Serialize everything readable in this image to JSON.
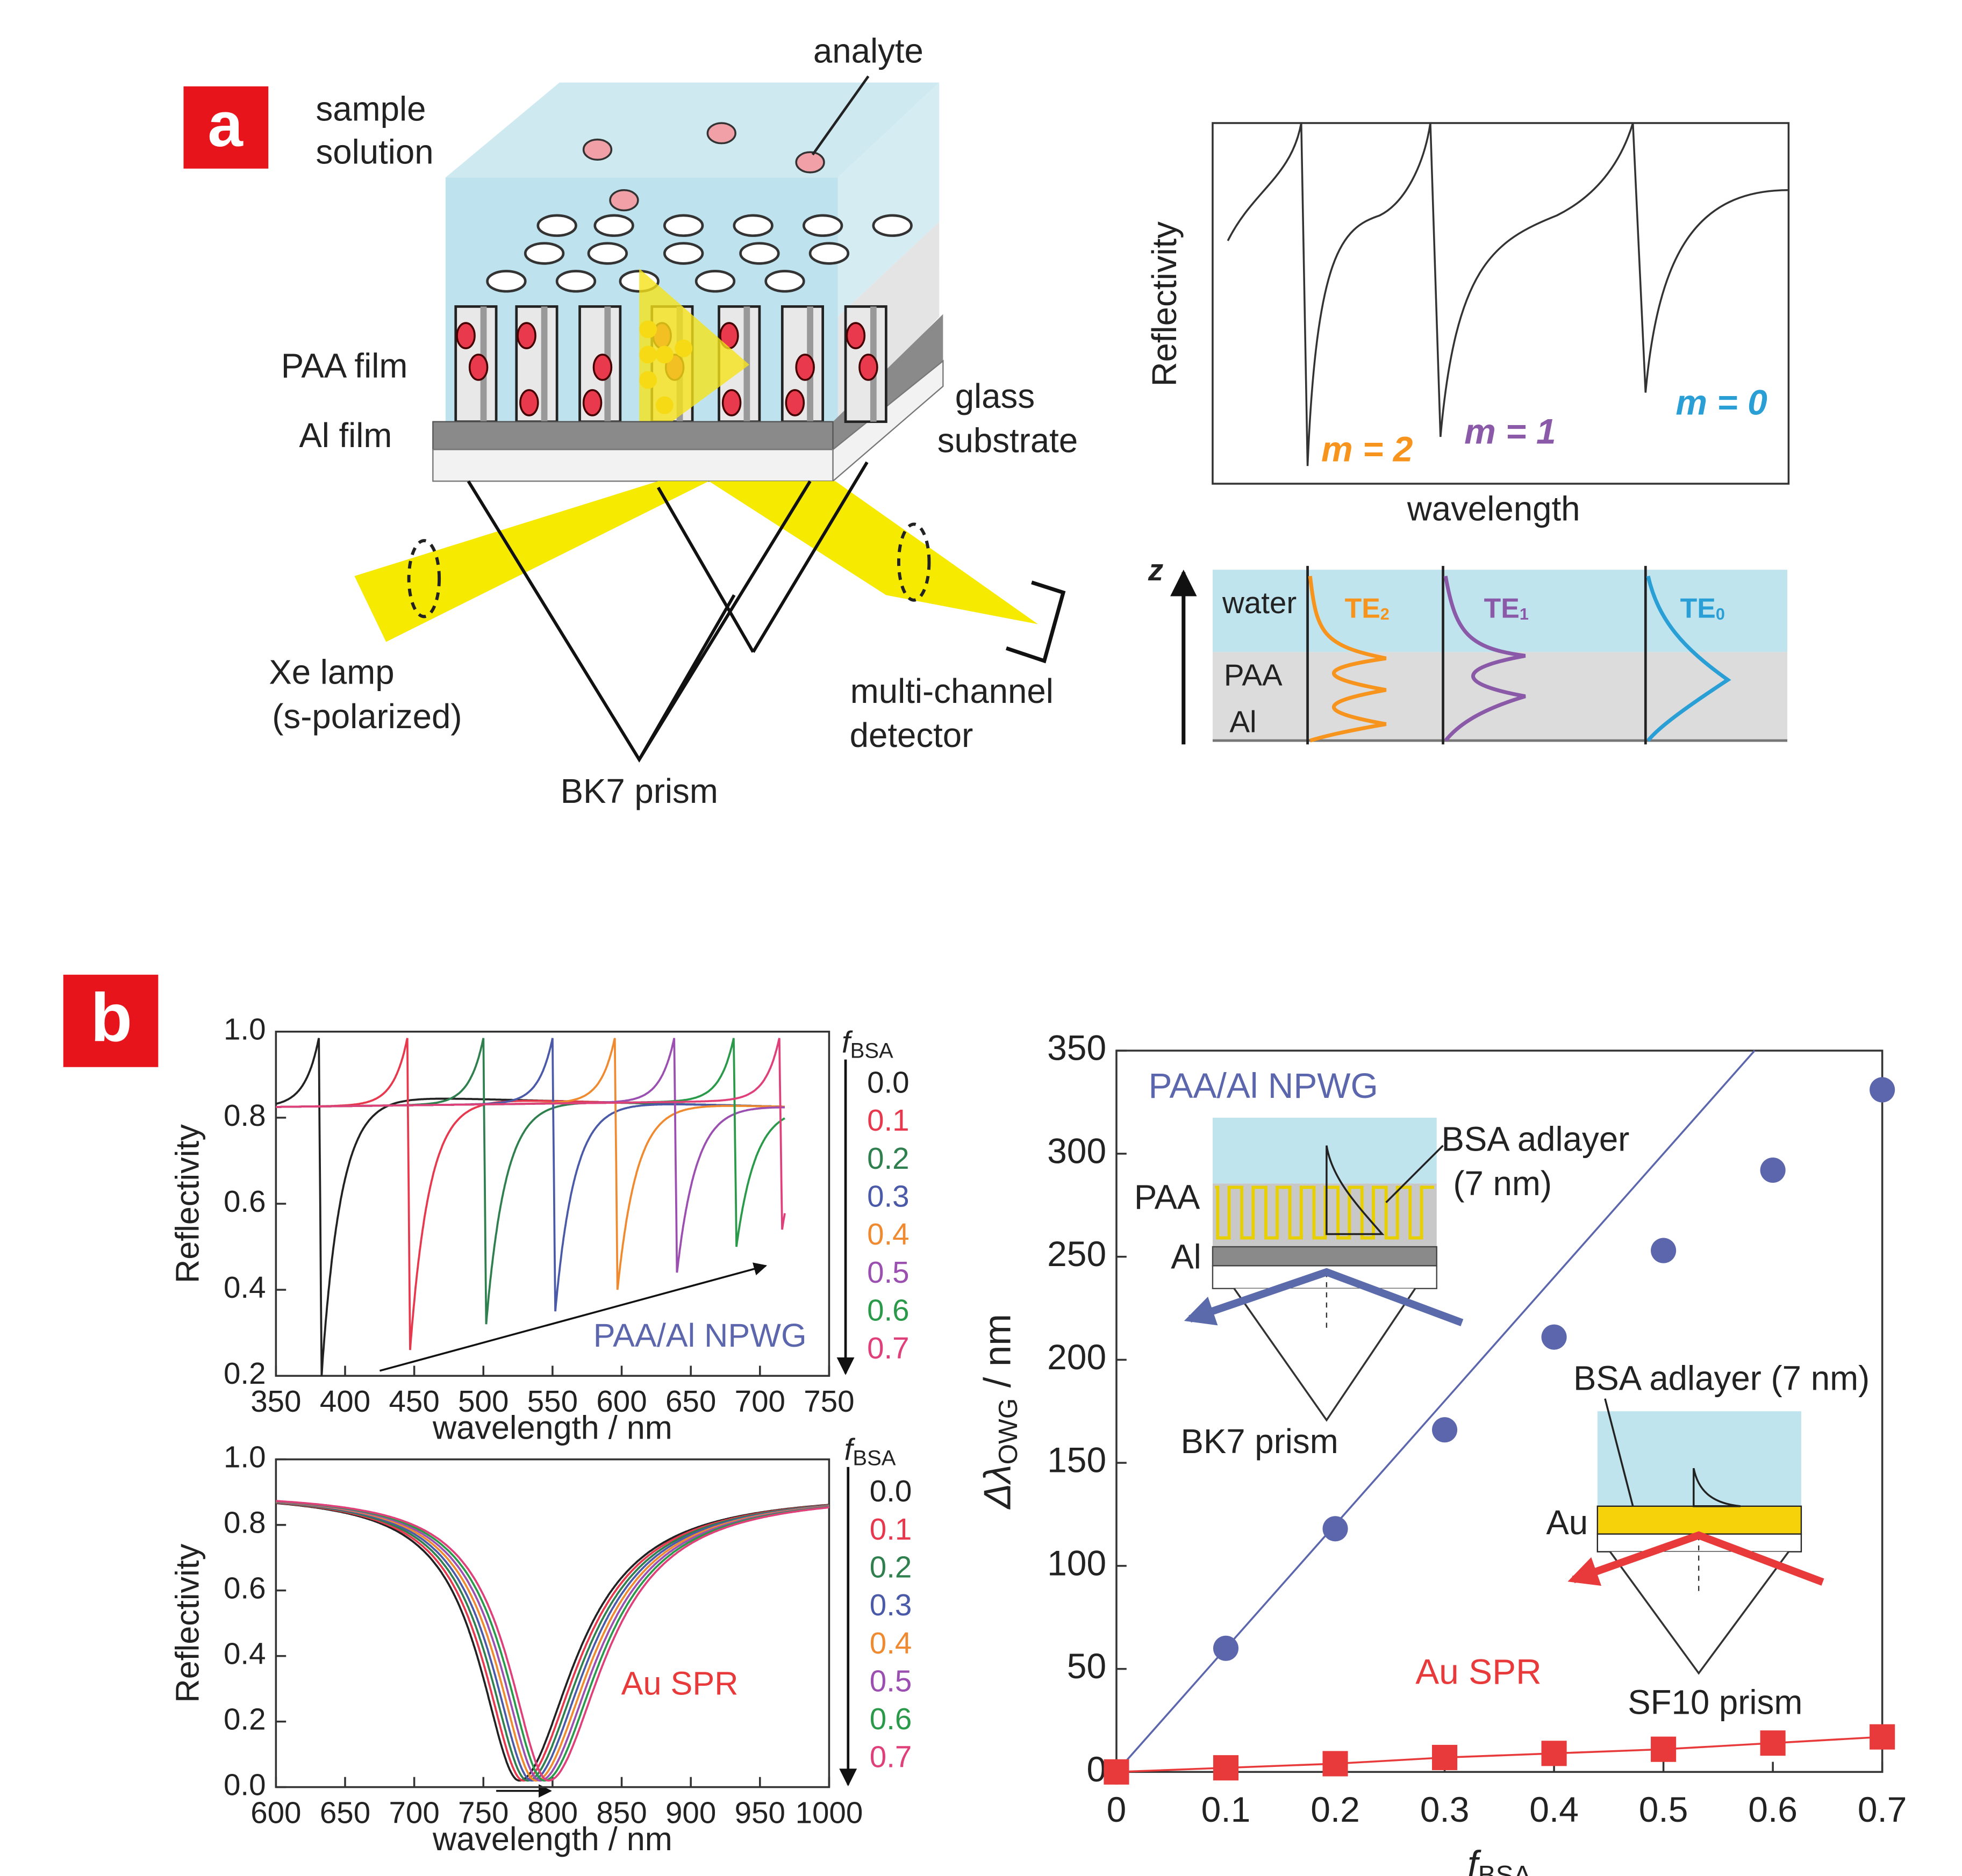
{
  "panel_a": {
    "label": "a",
    "analyte": "analyte",
    "sample_solution": [
      "sample",
      "solution"
    ],
    "paa_film": "PAA film",
    "al_film": "Al film",
    "glass_substrate": [
      "glass",
      "substrate"
    ],
    "lamp": [
      "Xe lamp",
      "(s-polarized)"
    ],
    "detector": [
      "multi-channel",
      "detector"
    ],
    "prism": "BK7 prism",
    "reflectivity_label": "Reflectivity",
    "wavelength_label": "wavelength",
    "modes": [
      {
        "label": "m = 2",
        "color": "#f7941d",
        "te": "TE",
        "sub": "2"
      },
      {
        "label": "m = 1",
        "color": "#8a5aa8",
        "te": "TE",
        "sub": "1"
      },
      {
        "label": "m = 0",
        "color": "#2a9fd6",
        "te": "TE",
        "sub": "0"
      }
    ],
    "z": "z",
    "water": "water",
    "paa": "PAA",
    "al": "Al"
  },
  "panel_b": {
    "label": "b",
    "inset_bsa": "BSA adlayer",
    "inset_bsa_thickness": "(7 nm)",
    "inset_paa": "PAA",
    "inset_al": "Al",
    "inset_bk7": "BK7 prism",
    "inset_bsa_au": "BSA adlayer (7 nm)",
    "inset_au": "Au",
    "inset_sf10": "SF10 prism"
  },
  "chart_data": [
    {
      "type": "spectra",
      "xlabel": "wavelength / nm",
      "ylabel": "Reflectivity",
      "xlim": [
        350,
        750
      ],
      "xticks": [
        350,
        400,
        450,
        500,
        550,
        600,
        650,
        700,
        750
      ],
      "ylim": [
        0.2,
        1
      ],
      "yticks": [
        0.2,
        0.4,
        0.6,
        0.8,
        {
          "value": 1,
          "label": "1.0"
        }
      ],
      "xrange": [
        350,
        718
      ],
      "legend_title": "f",
      "legend_title_sub": "BSA",
      "annotation": "PAA/Al NPWG",
      "annotation_color": "#5b66ad",
      "series": [
        {
          "name": "0.0",
          "color": "#222222",
          "dip": 383,
          "min": 0.2
        },
        {
          "name": "0.1",
          "color": "#e8384d",
          "dip": 447,
          "min": 0.26
        },
        {
          "name": "0.2",
          "color": "#2f7f4f",
          "dip": 502,
          "min": 0.32
        },
        {
          "name": "0.3",
          "color": "#4b5aa8",
          "dip": 552,
          "min": 0.35
        },
        {
          "name": "0.4",
          "color": "#f08a30",
          "dip": 597,
          "min": 0.4
        },
        {
          "name": "0.5",
          "color": "#9b4fb0",
          "dip": 640,
          "min": 0.44
        },
        {
          "name": "0.6",
          "color": "#2a9a4a",
          "dip": 683,
          "min": 0.5
        },
        {
          "name": "0.7",
          "color": "#e0407a",
          "dip": 716,
          "min": 0.54
        }
      ]
    },
    {
      "type": "spectra_spr",
      "xlabel": "wavelength / nm",
      "ylabel": "Reflectivity",
      "xlim": [
        600,
        1000
      ],
      "xticks": [
        600,
        650,
        700,
        750,
        800,
        850,
        900,
        950,
        1000
      ],
      "ylim": [
        0,
        1
      ],
      "yticks": [
        {
          "value": 0,
          "label": "0.0"
        },
        0.2,
        0.4,
        0.6,
        0.8,
        {
          "value": 1,
          "label": "1.0"
        }
      ],
      "xrange": [
        600,
        1000
      ],
      "legend_title": "f",
      "legend_title_sub": "BSA",
      "annotation": "Au SPR",
      "annotation_color": "#e83a3a",
      "series": [
        {
          "name": "0.0",
          "color": "#222222",
          "dip": 776,
          "min": 0.02
        },
        {
          "name": "0.1",
          "color": "#e8384d",
          "dip": 779,
          "min": 0.02
        },
        {
          "name": "0.2",
          "color": "#2f7f4f",
          "dip": 782,
          "min": 0.02
        },
        {
          "name": "0.3",
          "color": "#4b5aa8",
          "dip": 785,
          "min": 0.02
        },
        {
          "name": "0.4",
          "color": "#f08a30",
          "dip": 788,
          "min": 0.02
        },
        {
          "name": "0.5",
          "color": "#9b4fb0",
          "dip": 791,
          "min": 0.02
        },
        {
          "name": "0.6",
          "color": "#2a9a4a",
          "dip": 794,
          "min": 0.02
        },
        {
          "name": "0.7",
          "color": "#e0407a",
          "dip": 797,
          "min": 0.02
        }
      ]
    },
    {
      "type": "scatter",
      "xlabel": "f",
      "xlabel_sub": "BSA",
      "ylabel": "Δλ",
      "ylabel_sub": "OWG",
      "ylabel_unit": " / nm",
      "x": [
        0,
        0.1,
        0.2,
        0.3,
        0.4,
        0.5,
        0.6,
        0.7
      ],
      "xlim": [
        0,
        0.7
      ],
      "xticks": [
        0,
        0.1,
        0.2,
        0.3,
        0.4,
        0.5,
        0.6,
        0.7
      ],
      "ylim": [
        0,
        350
      ],
      "yticks": [
        0,
        50,
        100,
        150,
        200,
        250,
        300,
        350
      ],
      "fit": true,
      "series": [
        {
          "name": "PAA/Al NPWG",
          "color": "#5b66ad",
          "marker": "circle",
          "values": [
            0,
            60,
            118,
            166,
            211,
            253,
            292,
            331
          ]
        },
        {
          "name": "Au SPR",
          "color": "#e83a3a",
          "marker": "square",
          "values": [
            0,
            2,
            4,
            7,
            9,
            11,
            14,
            17
          ]
        }
      ]
    }
  ]
}
